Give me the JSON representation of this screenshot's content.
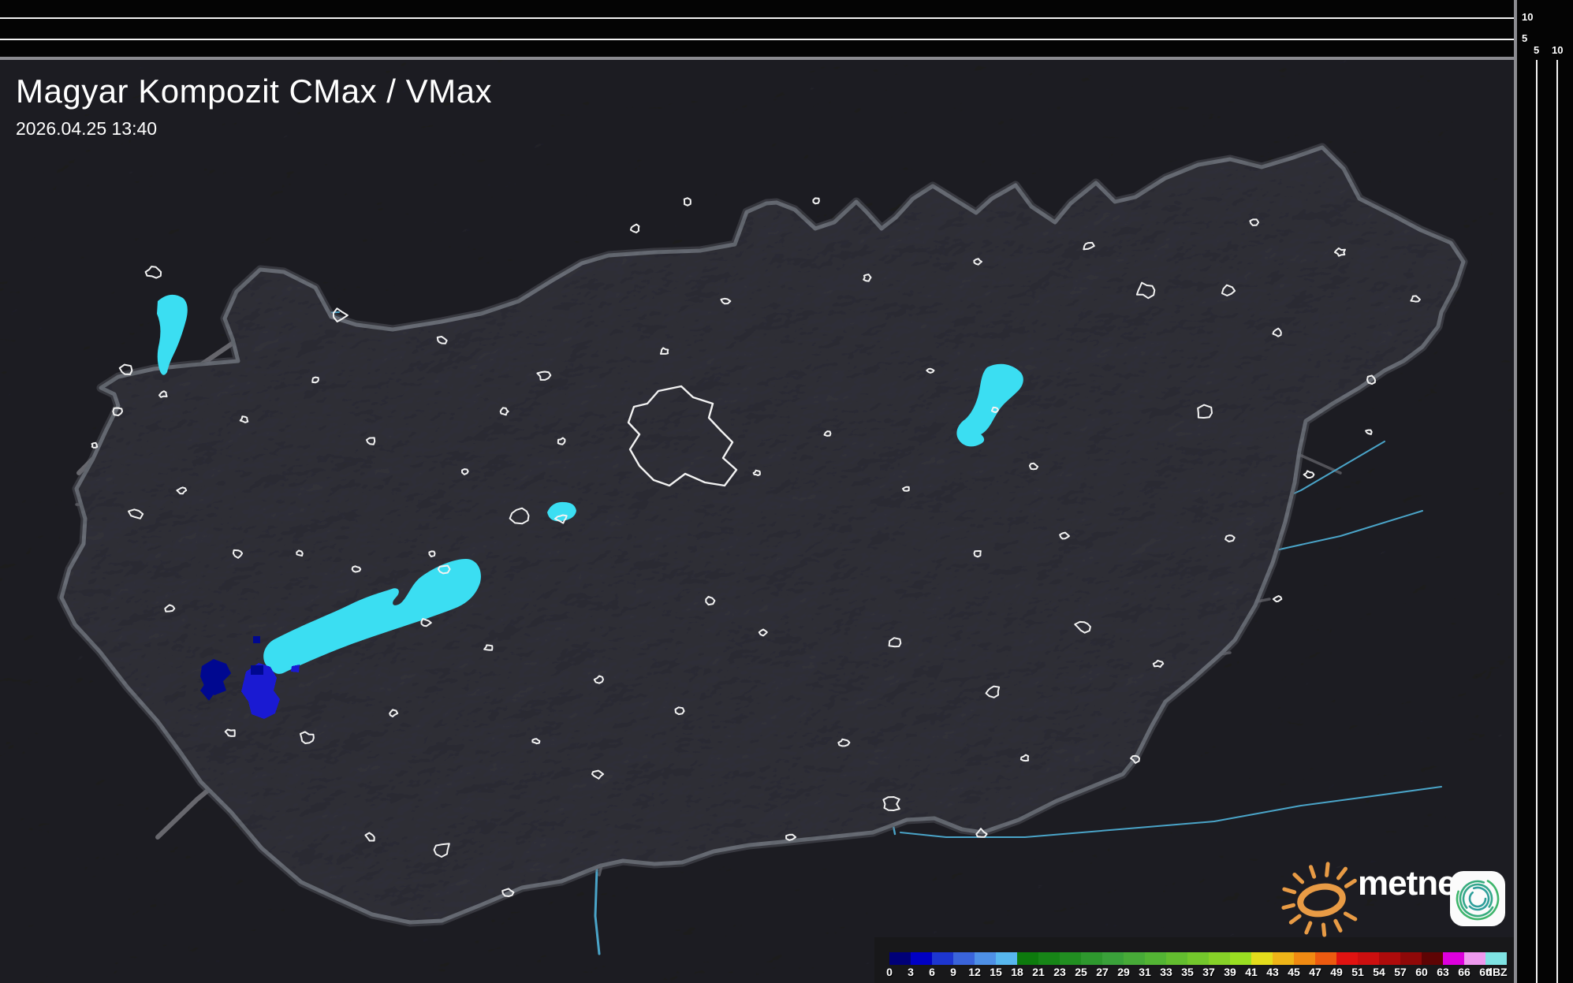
{
  "header": {
    "title": "Magyar Kompozit CMax / VMax",
    "datetime": "2026.04.25 13:40"
  },
  "side_scales": {
    "top_panel_height_ticks": [
      "10",
      "5"
    ],
    "right_panel_height_ticks": [
      "5",
      "10"
    ]
  },
  "colorbar": {
    "unit": "dBZ",
    "stops": [
      {
        "label": "0",
        "color": "#000078"
      },
      {
        "label": "3",
        "color": "#0000c4"
      },
      {
        "label": "6",
        "color": "#1d36d0"
      },
      {
        "label": "9",
        "color": "#3a64da"
      },
      {
        "label": "12",
        "color": "#4e90e6"
      },
      {
        "label": "15",
        "color": "#57b7ee"
      },
      {
        "label": "18",
        "color": "#0d7a0d"
      },
      {
        "label": "21",
        "color": "#178517"
      },
      {
        "label": "23",
        "color": "#218e21"
      },
      {
        "label": "25",
        "color": "#2e982e"
      },
      {
        "label": "27",
        "color": "#3aa13a"
      },
      {
        "label": "29",
        "color": "#47aa38"
      },
      {
        "label": "31",
        "color": "#53b434"
      },
      {
        "label": "33",
        "color": "#63bd2f"
      },
      {
        "label": "35",
        "color": "#73c72c"
      },
      {
        "label": "37",
        "color": "#86d128"
      },
      {
        "label": "39",
        "color": "#9ade22"
      },
      {
        "label": "41",
        "color": "#e3dc1c"
      },
      {
        "label": "43",
        "color": "#eeb418"
      },
      {
        "label": "45",
        "color": "#f08a12"
      },
      {
        "label": "47",
        "color": "#ec5a10"
      },
      {
        "label": "49",
        "color": "#e01311"
      },
      {
        "label": "51",
        "color": "#cc0f0f"
      },
      {
        "label": "54",
        "color": "#ad0b0b"
      },
      {
        "label": "57",
        "color": "#8f0808"
      },
      {
        "label": "60",
        "color": "#5e0404"
      },
      {
        "label": "63",
        "color": "#dd00dd"
      },
      {
        "label": "66",
        "color": "#ee99ee"
      },
      {
        "label": "69",
        "color": "#7fe3e3"
      }
    ]
  },
  "logo": {
    "brand_text": "metnet",
    "sun_icon": "sun-icon",
    "app_icon": "spiral-app-icon",
    "sun_color": "#e89b45",
    "spiral_green": "#3eb56b",
    "spiral_teal": "#2f9f9b"
  }
}
